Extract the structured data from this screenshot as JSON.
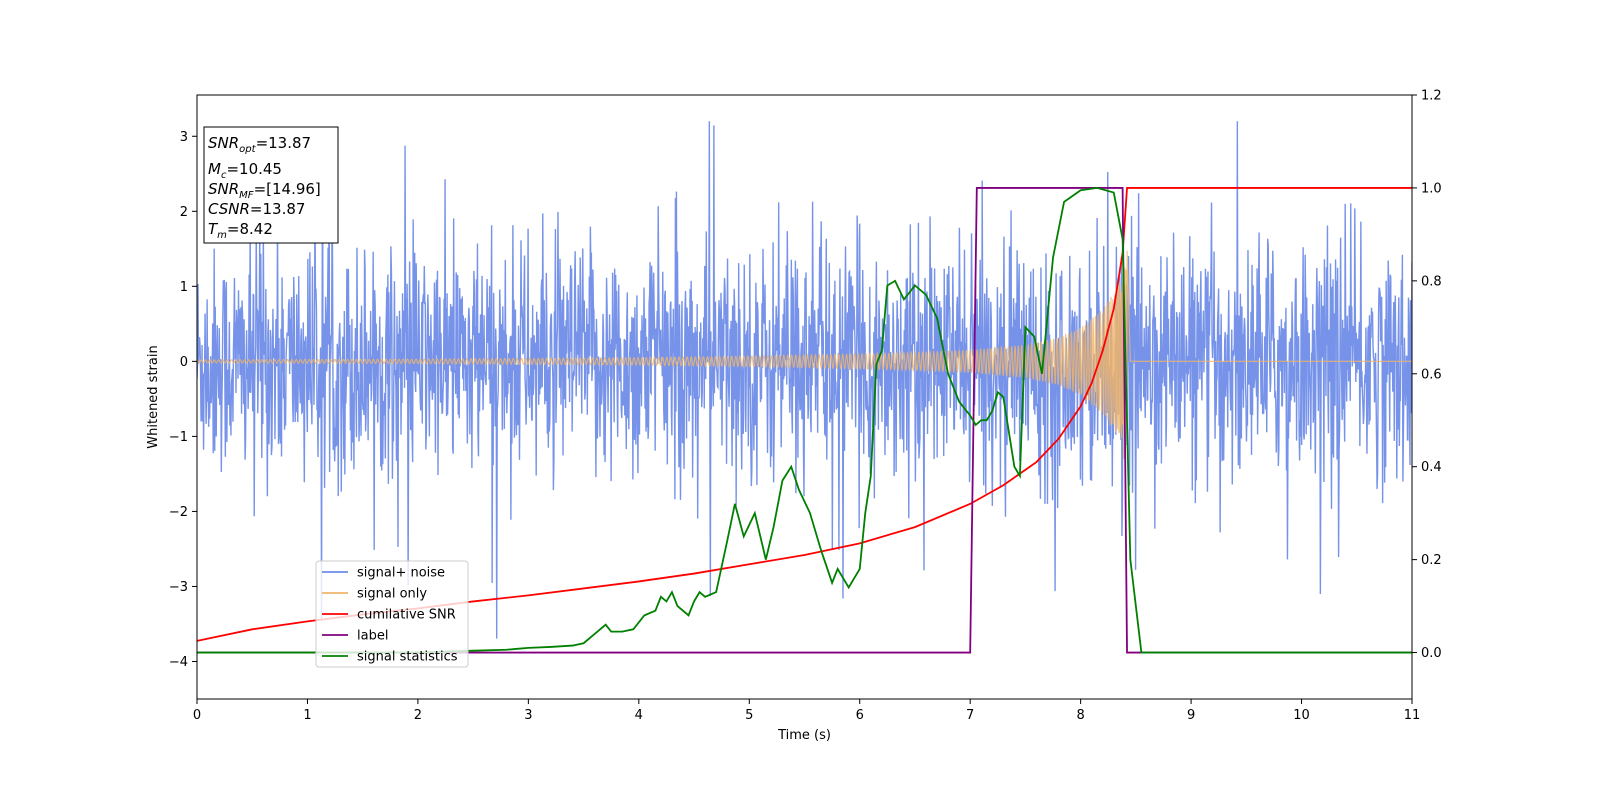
{
  "chart_data": {
    "type": "line",
    "xlabel": "Time (s)",
    "ylabel": "Whitened strain",
    "xlim": [
      0,
      11
    ],
    "ylim_left": [
      -4.5,
      3.55
    ],
    "ylim_right": [
      -0.1,
      1.2
    ],
    "x_ticks": [
      0,
      1,
      2,
      3,
      4,
      5,
      6,
      7,
      8,
      9,
      10,
      11
    ],
    "y_ticks_left": [
      -4,
      -3,
      -2,
      -1,
      0,
      1,
      2,
      3
    ],
    "y_ticks_right": [
      "0.0",
      "0.2",
      "0.4",
      "0.6",
      "0.8",
      "1.0",
      "1.2"
    ],
    "y_tick_values_right": [
      0.0,
      0.2,
      0.4,
      0.6,
      0.8,
      1.0,
      1.2
    ],
    "grid": false,
    "legend_position": "lower-left",
    "info_box": [
      {
        "base": "SNR",
        "sub": "opt",
        "value": "=13.87"
      },
      {
        "base": "M",
        "sub": "c",
        "value": "=10.45"
      },
      {
        "base": "SNR",
        "sub": "MF",
        "value": "=[14.96]"
      },
      {
        "base": "CSNR",
        "sub": "",
        "value": "=13.87"
      },
      {
        "base": "T",
        "sub": "m",
        "value": "=8.42"
      }
    ],
    "series": [
      {
        "name": "signal+ noise",
        "axis": "left",
        "color": "#6f8de8",
        "description": "noise band",
        "noise_sigma": 0.95,
        "x_range": [
          0,
          11
        ]
      },
      {
        "name": "signal only",
        "axis": "left",
        "color": "#f0b46a",
        "amplitude_envelope": {
          "x": [
            0,
            2,
            4,
            5,
            6,
            6.5,
            7,
            7.5,
            7.8,
            8.0,
            8.2,
            8.35,
            8.42,
            8.45,
            11
          ],
          "y": [
            0.02,
            0.03,
            0.05,
            0.07,
            0.1,
            0.12,
            0.15,
            0.22,
            0.32,
            0.45,
            0.7,
            1.05,
            1.5,
            0.0,
            0.0
          ]
        }
      },
      {
        "name": "cumilative SNR",
        "axis": "right",
        "color": "#ff0000",
        "x": [
          0,
          0.5,
          1,
          1.5,
          2,
          2.5,
          3,
          3.5,
          4,
          4.5,
          5,
          5.5,
          6,
          6.5,
          7,
          7.3,
          7.6,
          7.8,
          8.0,
          8.1,
          8.2,
          8.3,
          8.38,
          8.42,
          8.45,
          11
        ],
        "y": [
          0.025,
          0.05,
          0.067,
          0.082,
          0.095,
          0.11,
          0.123,
          0.138,
          0.153,
          0.17,
          0.19,
          0.21,
          0.235,
          0.27,
          0.32,
          0.36,
          0.41,
          0.46,
          0.53,
          0.58,
          0.65,
          0.74,
          0.86,
          1.0,
          1.0,
          1.0
        ]
      },
      {
        "name": "label",
        "axis": "right",
        "color": "#800080",
        "x": [
          0,
          7.0,
          7.06,
          8.38,
          8.42,
          11
        ],
        "y": [
          0,
          0,
          1.0,
          1.0,
          0,
          0
        ]
      },
      {
        "name": "signal statistics",
        "axis": "right",
        "color": "#008000",
        "x": [
          0,
          1,
          2,
          2.5,
          2.8,
          2.9,
          3.0,
          3.2,
          3.4,
          3.5,
          3.6,
          3.7,
          3.75,
          3.85,
          3.95,
          4.05,
          4.15,
          4.2,
          4.25,
          4.3,
          4.35,
          4.45,
          4.5,
          4.55,
          4.6,
          4.7,
          4.8,
          4.87,
          4.95,
          5.05,
          5.15,
          5.22,
          5.3,
          5.38,
          5.45,
          5.55,
          5.65,
          5.75,
          5.8,
          5.9,
          6.0,
          6.05,
          6.1,
          6.15,
          6.2,
          6.25,
          6.32,
          6.4,
          6.5,
          6.6,
          6.7,
          6.8,
          6.9,
          7.0,
          7.05,
          7.1,
          7.15,
          7.2,
          7.25,
          7.3,
          7.4,
          7.45,
          7.5,
          7.58,
          7.65,
          7.75,
          7.85,
          8.0,
          8.15,
          8.3,
          8.38,
          8.45,
          8.55,
          9,
          10,
          11
        ],
        "y": [
          0.0,
          0.0,
          0.0,
          0.004,
          0.006,
          0.008,
          0.01,
          0.012,
          0.015,
          0.02,
          0.04,
          0.06,
          0.045,
          0.045,
          0.05,
          0.08,
          0.09,
          0.12,
          0.11,
          0.13,
          0.1,
          0.08,
          0.11,
          0.13,
          0.12,
          0.13,
          0.24,
          0.32,
          0.25,
          0.3,
          0.2,
          0.27,
          0.37,
          0.4,
          0.35,
          0.3,
          0.22,
          0.15,
          0.18,
          0.14,
          0.18,
          0.3,
          0.38,
          0.62,
          0.65,
          0.79,
          0.8,
          0.76,
          0.79,
          0.77,
          0.72,
          0.6,
          0.54,
          0.51,
          0.49,
          0.5,
          0.5,
          0.52,
          0.56,
          0.55,
          0.4,
          0.38,
          0.7,
          0.68,
          0.6,
          0.85,
          0.97,
          0.995,
          1.0,
          0.99,
          0.89,
          0.2,
          0.0,
          0.0,
          0.0,
          0.0
        ]
      }
    ]
  }
}
